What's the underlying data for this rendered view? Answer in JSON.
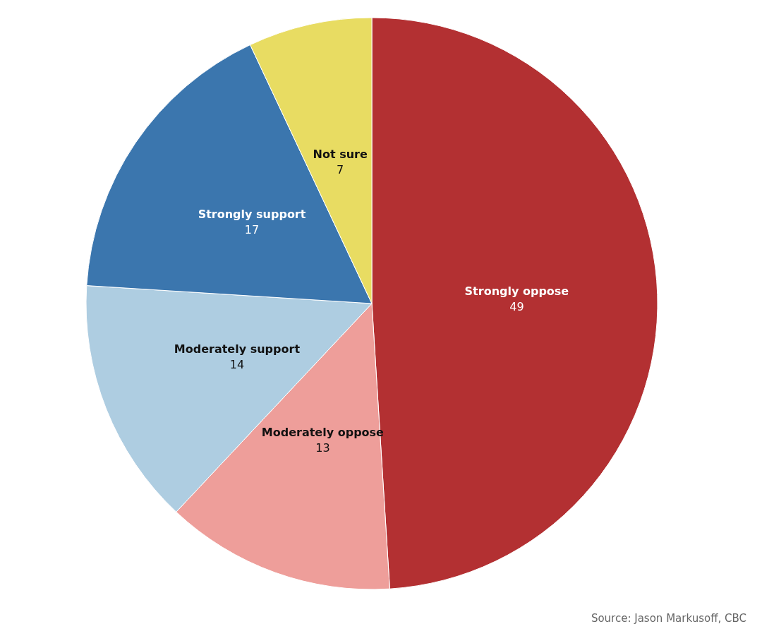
{
  "chart_data": {
    "type": "pie",
    "categories": [
      "Strongly oppose",
      "Moderately oppose",
      "Moderately support",
      "Strongly support",
      "Not sure"
    ],
    "values": [
      49,
      13,
      14,
      17,
      7
    ],
    "colors": [
      "#b33032",
      "#ee9e9a",
      "#aecde1",
      "#3b76ae",
      "#e8dc62"
    ],
    "data_labels": true,
    "legend": false,
    "annotations": [
      "Source: Jason Markusoff, CBC"
    ]
  }
}
